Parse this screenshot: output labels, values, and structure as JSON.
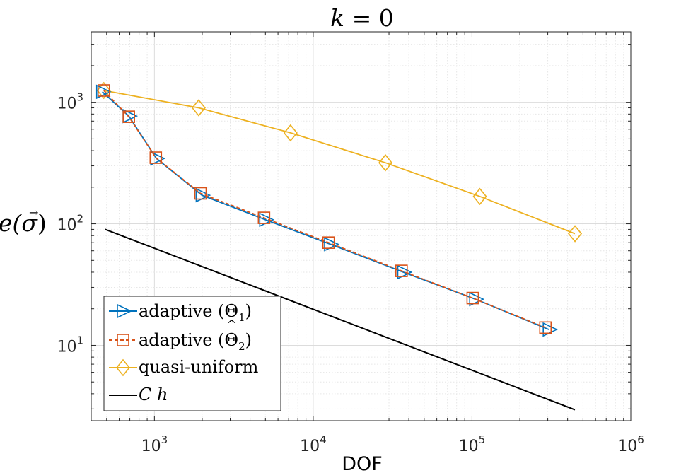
{
  "chart_data": {
    "type": "line",
    "title": "k = 0",
    "title_parts": {
      "var": "k",
      "eq": " = 0"
    },
    "xlabel": "DOF",
    "ylabel": "e(σ)",
    "ylabel_parts": {
      "fn": "e(",
      "sym": "σ",
      "close": ")",
      "vec": "→"
    },
    "xscale": "log",
    "yscale": "log",
    "xlim": [
      400,
      1000000
    ],
    "ylim": [
      2.4,
      3800
    ],
    "grid": true,
    "minor_grid": true,
    "legend_position": "bottom-left",
    "x_ticks": [
      {
        "value": 1000,
        "base": "10",
        "exp": "3"
      },
      {
        "value": 10000,
        "base": "10",
        "exp": "4"
      },
      {
        "value": 100000,
        "base": "10",
        "exp": "5"
      },
      {
        "value": 1000000,
        "base": "10",
        "exp": "6"
      }
    ],
    "y_ticks": [
      {
        "value": 10,
        "base": "10",
        "exp": "1"
      },
      {
        "value": 100,
        "base": "10",
        "exp": "2"
      },
      {
        "value": 1000,
        "base": "10",
        "exp": "3"
      }
    ],
    "series": [
      {
        "name": "adaptive (Θ1)",
        "legend": {
          "text": "adaptive (Θ",
          "sub": "1",
          "close": ")"
        },
        "color": "#0072BD",
        "dash": "solid",
        "marker": "triangle-right",
        "x": [
          470,
          690,
          1030,
          1990,
          5000,
          12800,
          37000,
          105000,
          305000
        ],
        "y": [
          1220,
          770,
          345,
          172,
          108,
          68,
          40,
          24,
          13.5
        ]
      },
      {
        "name": "adaptive (Θ̂2)",
        "legend": {
          "text": "adaptive (Θ",
          "sub": "2",
          "close": ")",
          "hat": "^"
        },
        "color": "#D95319",
        "dash": "dashed",
        "marker": "square",
        "x": [
          480,
          690,
          1020,
          1950,
          4900,
          12500,
          36000,
          101000,
          290000
        ],
        "y": [
          1250,
          760,
          350,
          178,
          112,
          70,
          41,
          24.5,
          14
        ]
      },
      {
        "name": "quasi-uniform",
        "legend": {
          "text": "quasi-uniform"
        },
        "color": "#EDB120",
        "dash": "solid",
        "marker": "diamond",
        "x": [
          480,
          1900,
          7200,
          28500,
          112000,
          445000
        ],
        "y": [
          1250,
          900,
          560,
          318,
          168,
          83
        ]
      },
      {
        "name": "C h",
        "legend": {
          "text": "C h"
        },
        "color": "#000000",
        "dash": "solid",
        "marker": "none",
        "x": [
          490,
          445000
        ],
        "y": [
          90,
          2.95
        ]
      }
    ]
  }
}
